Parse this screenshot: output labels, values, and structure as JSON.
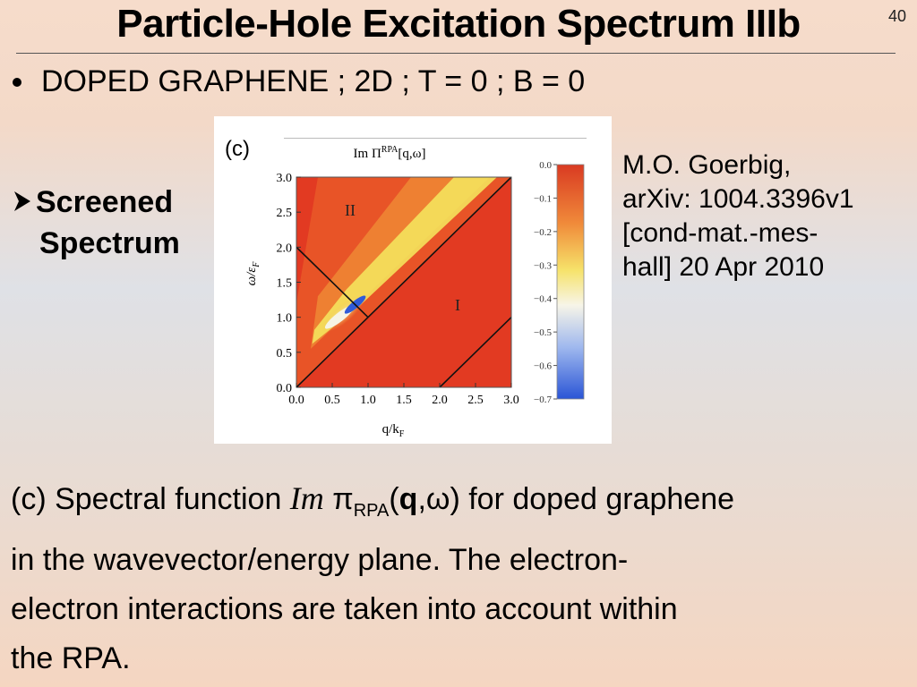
{
  "slide": {
    "title": "Particle-Hole Excitation Spectrum IIIb",
    "number": "40",
    "bullet": "DOPED GRAPHENE ; 2D ; T = 0 ; B = 0",
    "sub_bullet": [
      "Screened",
      "Spectrum"
    ],
    "citation": [
      "M.O. Goerbig,",
      "arXiv: 1004.3396v1",
      "[cond-mat.-mes-",
      "hall] 20 Apr 2010"
    ],
    "caption": {
      "prefix": "(c) Spectral function ",
      "im": "Im",
      "pi": " π",
      "sub": "RPA",
      "open": "(",
      "q": "q",
      "rest_line1": ",ω) for doped graphene",
      "line2": "in the wavevector/energy plane. The electron-",
      "line3": "electron interactions are taken into account within",
      "line4": "the RPA."
    }
  },
  "chart_data": {
    "type": "heatmap",
    "panel_label": "(c)",
    "title": "Im Π",
    "title_sup": "RPA",
    "title_args": "[q,ω]",
    "xlabel": "q/k",
    "xlabel_sub": "F",
    "ylabel": "ω/ε",
    "ylabel_sub": "F",
    "x_ticks": [
      "0.0",
      "0.5",
      "1.0",
      "1.5",
      "2.0",
      "2.5",
      "3.0"
    ],
    "y_ticks": [
      "0.0",
      "0.5",
      "1.0",
      "1.5",
      "2.0",
      "2.5",
      "3.0"
    ],
    "xlim": [
      0,
      3
    ],
    "ylim": [
      0,
      3
    ],
    "colorbar_ticks": [
      "0.0",
      "−0.1",
      "−0.2",
      "−0.3",
      "−0.4",
      "−0.5",
      "−0.6",
      "−0.7"
    ],
    "colorbar_range": [
      0,
      -0.7
    ],
    "region_labels": [
      {
        "text": "II",
        "q": 0.75,
        "w": 2.45
      },
      {
        "text": "I",
        "q": 2.25,
        "w": 1.1
      }
    ],
    "lines": [
      {
        "name": "w=q",
        "points": [
          [
            0,
            0
          ],
          [
            3,
            3
          ]
        ]
      },
      {
        "name": "w=q-2",
        "points": [
          [
            2,
            0
          ],
          [
            3,
            1
          ]
        ]
      },
      {
        "name": "w=2-q",
        "points": [
          [
            0,
            2
          ],
          [
            1,
            1
          ]
        ]
      }
    ],
    "colors": {
      "background_red": "#e23a22",
      "yellow": "#f4e25c",
      "white": "#f6f4e4",
      "blue": "#2f5bd8"
    }
  }
}
